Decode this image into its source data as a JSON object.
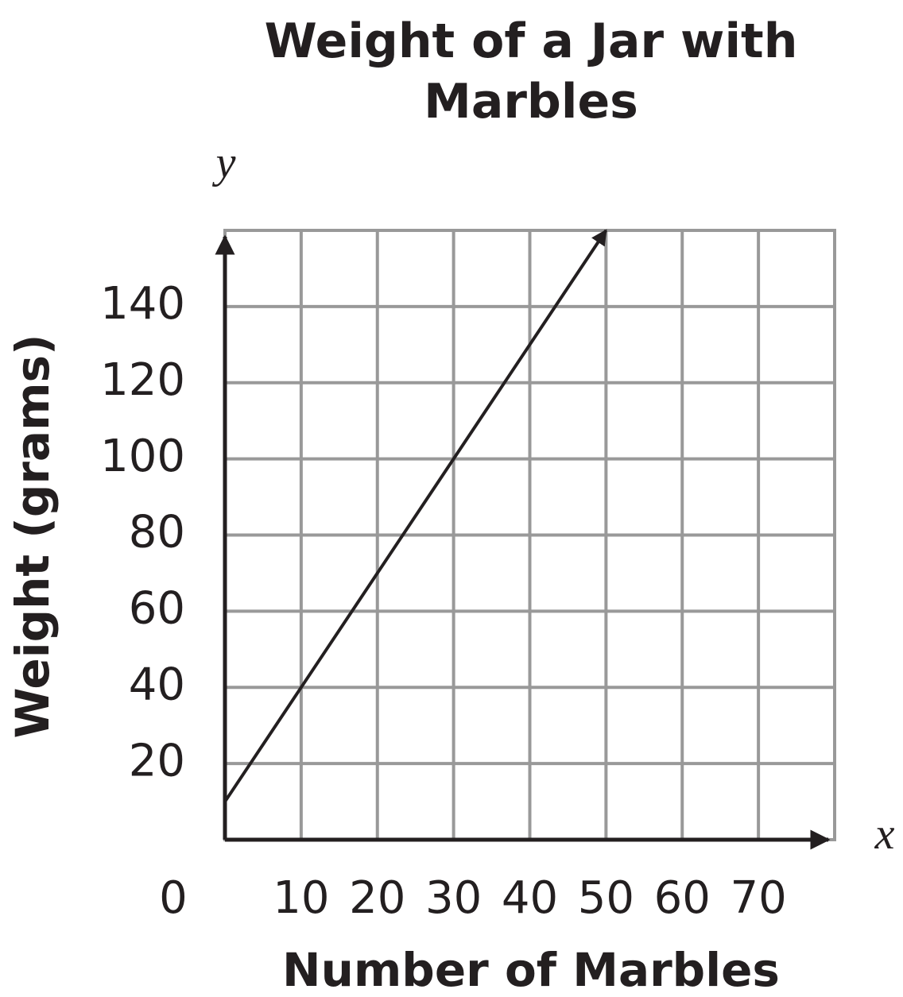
{
  "chart_data": {
    "type": "line",
    "title": "Weight of a Jar with Marbles",
    "x_label": "Number of Marbles",
    "y_label": "Weight (grams)",
    "x_axis_letter": "x",
    "y_axis_letter": "y",
    "x": [
      0,
      50
    ],
    "series": [
      {
        "color": "#231f20",
        "values": [
          10,
          160
        ]
      }
    ],
    "xlim": [
      0,
      80
    ],
    "ylim": [
      0,
      160
    ],
    "xticks": [
      0,
      10,
      20,
      30,
      40,
      50,
      60,
      70
    ],
    "yticks": [
      20,
      40,
      60,
      80,
      100,
      120,
      140
    ],
    "grid": true
  }
}
